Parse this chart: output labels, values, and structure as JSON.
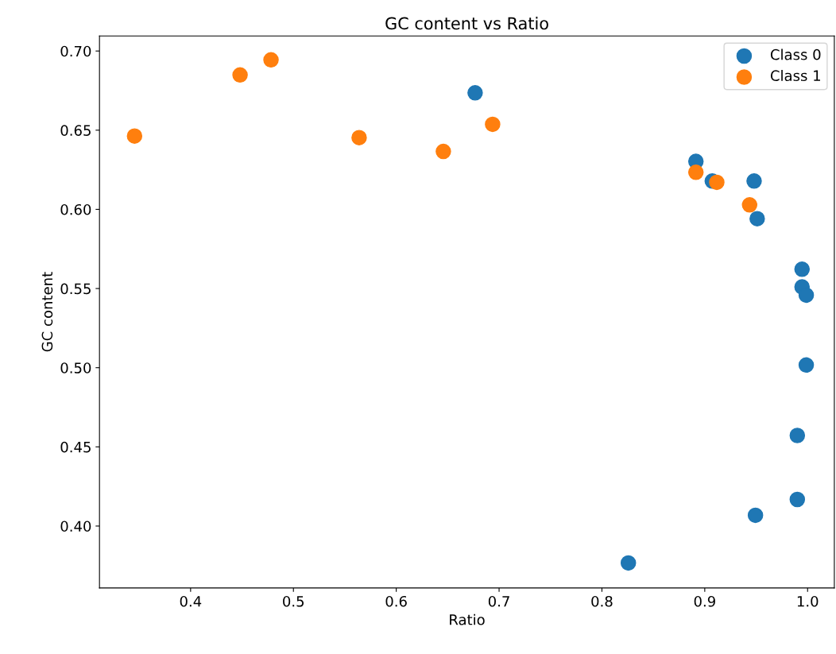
{
  "chart_data": {
    "type": "scatter",
    "title": "GC content vs Ratio",
    "xlabel": "Ratio",
    "ylabel": "GC content",
    "series": [
      {
        "name": "Class 0",
        "color": "#1f77b4",
        "x": [
          0.6767,
          0.8914,
          0.9073,
          0.948,
          0.951,
          0.9946,
          0.9946,
          0.9987,
          0.9987,
          0.99,
          0.99,
          0.9493,
          0.8257
        ],
        "values": [
          0.6736,
          0.6303,
          0.6179,
          0.6179,
          0.5941,
          0.5622,
          0.551,
          0.5458,
          0.5017,
          0.4572,
          0.4168,
          0.4068,
          0.3767
        ]
      },
      {
        "name": "Class 1",
        "color": "#ff7f0e",
        "x": [
          0.3455,
          0.4481,
          0.4782,
          0.5639,
          0.6458,
          0.6937,
          0.8914,
          0.9117,
          0.9436
        ],
        "values": [
          0.6463,
          0.6849,
          0.6944,
          0.6453,
          0.6366,
          0.6537,
          0.6234,
          0.6171,
          0.6028
        ]
      }
    ],
    "xlim": [
      0.3114,
      1.026
    ],
    "ylim": [
      0.3609,
      0.7095
    ],
    "xticks": [
      0.4,
      0.5,
      0.6,
      0.7,
      0.8,
      0.9,
      {
        "value": 1.0,
        "label": "1.0"
      }
    ],
    "yticks": [
      {
        "value": 0.4,
        "label": "0.40"
      },
      {
        "value": 0.45,
        "label": "0.45"
      },
      {
        "value": 0.5,
        "label": "0.50"
      },
      {
        "value": 0.55,
        "label": "0.55"
      },
      {
        "value": 0.6,
        "label": "0.60"
      },
      {
        "value": 0.65,
        "label": "0.65"
      },
      {
        "value": 0.7,
        "label": "0.70"
      }
    ],
    "legend": "top right",
    "marker": "circle"
  }
}
